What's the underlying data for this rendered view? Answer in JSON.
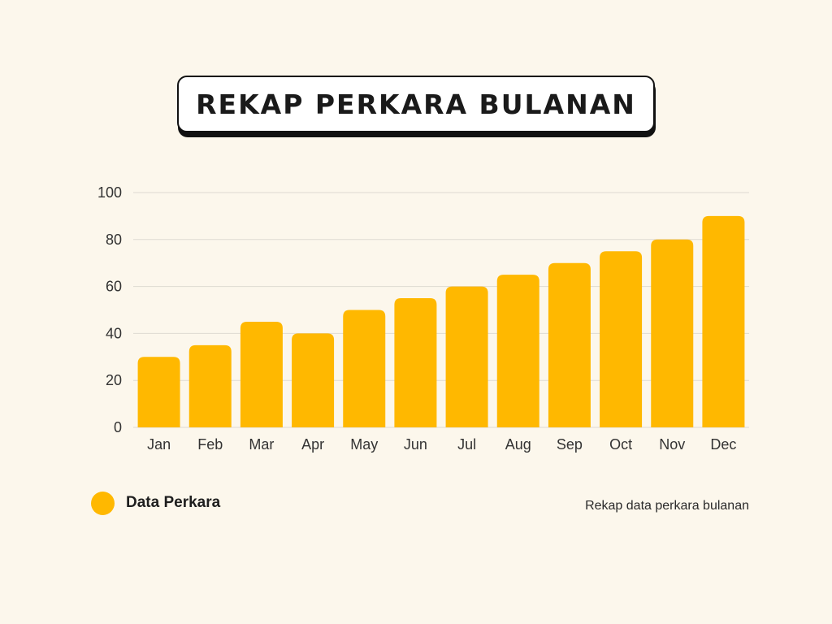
{
  "title": "REKAP PERKARA BULANAN",
  "legend": {
    "label": "Data Perkara"
  },
  "caption": "Rekap data perkara bulanan",
  "colors": {
    "bar": "#ffb800",
    "grid": "#dedad2",
    "axis_text": "#333333",
    "background": "#fcf7ec"
  },
  "chart_data": {
    "type": "bar",
    "categories": [
      "Jan",
      "Feb",
      "Mar",
      "Apr",
      "May",
      "Jun",
      "Jul",
      "Aug",
      "Sep",
      "Oct",
      "Nov",
      "Dec"
    ],
    "series": [
      {
        "name": "Data Perkara",
        "values": [
          30,
          35,
          45,
          40,
          50,
          55,
          60,
          65,
          70,
          75,
          80,
          90
        ]
      }
    ],
    "ylim": [
      0,
      100
    ],
    "yticks": [
      0,
      20,
      40,
      60,
      80,
      100
    ],
    "grid": true,
    "legend_position": "bottom-left"
  }
}
